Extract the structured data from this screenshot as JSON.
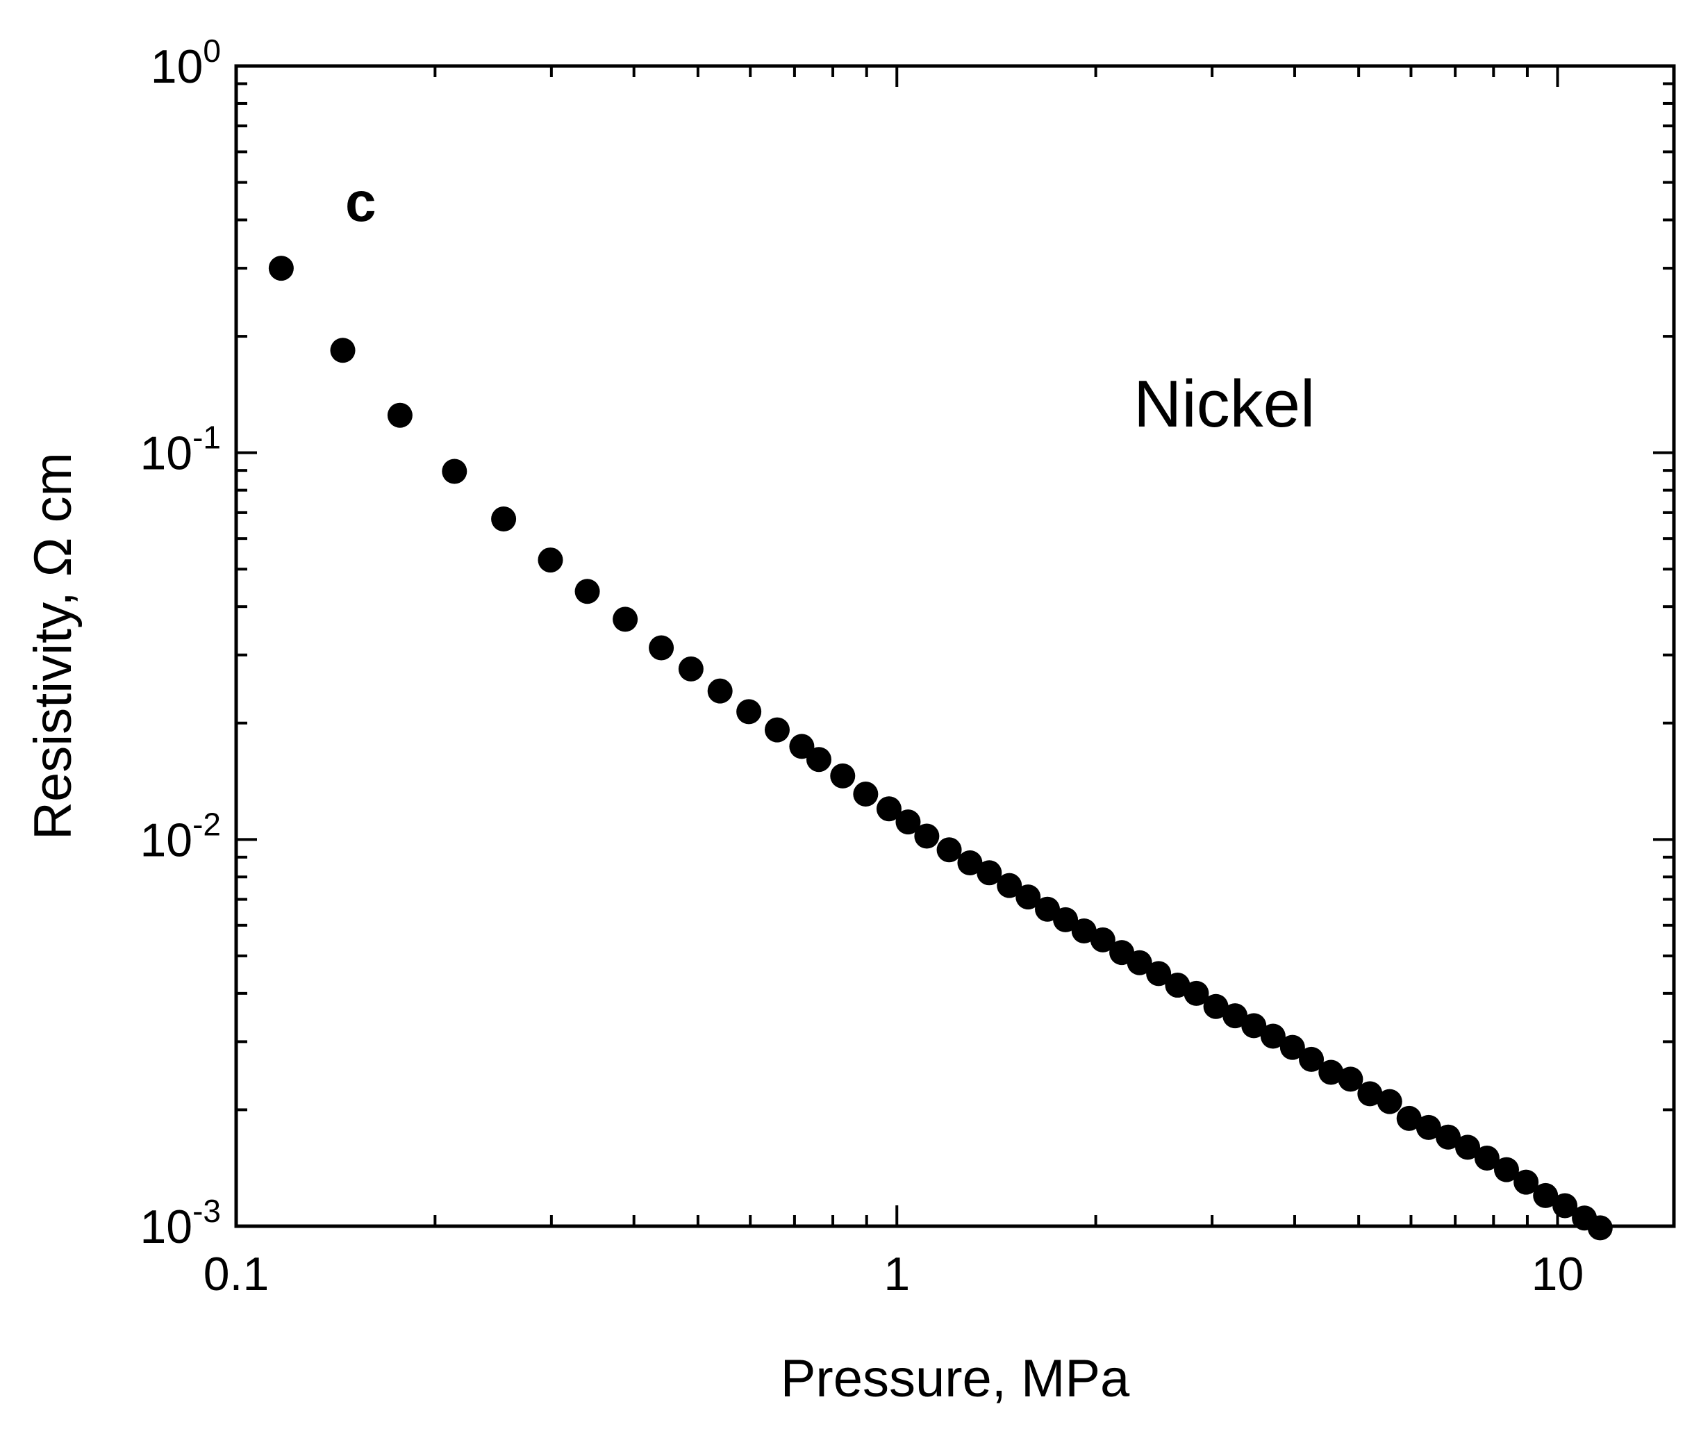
{
  "chart_data": {
    "type": "scatter",
    "title": "",
    "panel_label": "c",
    "annotation": "Nickel",
    "xlabel": "Pressure, MPa",
    "ylabel": "Resistivity, Ω cm",
    "xscale": "log",
    "yscale": "log",
    "xlim": [
      0.1,
      15
    ],
    "ylim": [
      0.001,
      1
    ],
    "grid": false,
    "x_ticks": [
      {
        "value": 0.1,
        "label": "0.1"
      },
      {
        "value": 1,
        "label": "1"
      },
      {
        "value": 10,
        "label": "10"
      }
    ],
    "y_ticks": [
      {
        "value": 1,
        "base": "10",
        "exp": "0"
      },
      {
        "value": 0.1,
        "base": "10",
        "exp": "-1"
      },
      {
        "value": 0.01,
        "base": "10",
        "exp": "-2"
      },
      {
        "value": 0.001,
        "base": "10",
        "exp": "-3"
      }
    ],
    "series": [
      {
        "name": "Nickel",
        "marker": "filled-circle",
        "color": "#000000",
        "points": [
          [
            0.117,
            0.3
          ],
          [
            0.145,
            0.184
          ],
          [
            0.177,
            0.125
          ],
          [
            0.214,
            0.0895
          ],
          [
            0.254,
            0.0674
          ],
          [
            0.299,
            0.0528
          ],
          [
            0.34,
            0.0438
          ],
          [
            0.388,
            0.0371
          ],
          [
            0.44,
            0.0313
          ],
          [
            0.488,
            0.0276
          ],
          [
            0.54,
            0.0242
          ],
          [
            0.597,
            0.0214
          ],
          [
            0.659,
            0.0192
          ],
          [
            0.718,
            0.0174
          ],
          [
            0.762,
            0.0161
          ],
          [
            0.828,
            0.0146
          ],
          [
            0.897,
            0.0131
          ],
          [
            0.973,
            0.012
          ],
          [
            1.04,
            0.0111
          ],
          [
            1.11,
            0.0102
          ],
          [
            1.2,
            0.0094
          ],
          [
            1.29,
            0.0087
          ],
          [
            1.38,
            0.0082
          ],
          [
            1.48,
            0.0076
          ],
          [
            1.58,
            0.0071
          ],
          [
            1.69,
            0.0066
          ],
          [
            1.8,
            0.0062
          ],
          [
            1.92,
            0.0058
          ],
          [
            2.05,
            0.0055
          ],
          [
            2.19,
            0.0051
          ],
          [
            2.33,
            0.0048
          ],
          [
            2.49,
            0.0045
          ],
          [
            2.66,
            0.0042
          ],
          [
            2.84,
            0.004
          ],
          [
            3.04,
            0.0037
          ],
          [
            3.25,
            0.0035
          ],
          [
            3.47,
            0.0033
          ],
          [
            3.71,
            0.0031
          ],
          [
            3.97,
            0.0029
          ],
          [
            4.24,
            0.0027
          ],
          [
            4.54,
            0.0025
          ],
          [
            4.86,
            0.0024
          ],
          [
            5.2,
            0.0022
          ],
          [
            5.57,
            0.0021
          ],
          [
            5.96,
            0.0019
          ],
          [
            6.38,
            0.0018
          ],
          [
            6.83,
            0.0017
          ],
          [
            7.31,
            0.0016
          ],
          [
            7.82,
            0.0015
          ],
          [
            8.37,
            0.0014
          ],
          [
            8.96,
            0.0013
          ],
          [
            9.59,
            0.0012
          ],
          [
            10.26,
            0.00113
          ],
          [
            10.98,
            0.00105
          ],
          [
            11.6,
            0.00099
          ]
        ]
      }
    ]
  }
}
